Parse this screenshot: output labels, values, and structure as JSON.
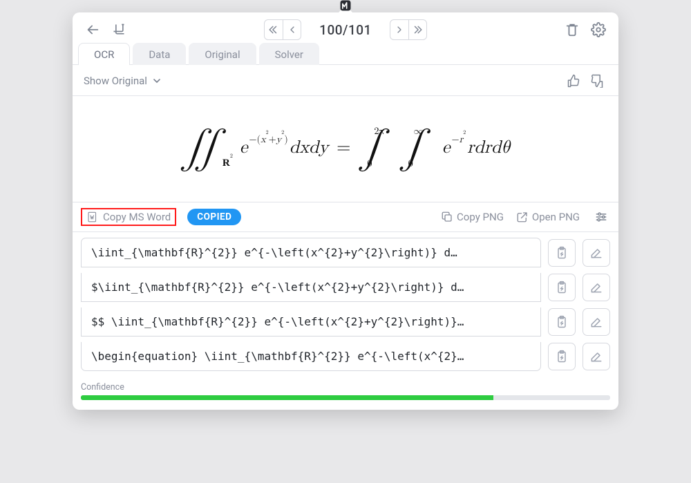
{
  "pager": {
    "current": 100,
    "total": 101,
    "display": "100/101"
  },
  "tabs": [
    {
      "label": "OCR",
      "active": true
    },
    {
      "label": "Data",
      "active": false
    },
    {
      "label": "Original",
      "active": false
    },
    {
      "label": "Solver",
      "active": false
    }
  ],
  "show_original_label": "Show Original",
  "equation": {
    "latex_source": "\\iint_{\\mathbf{R}^{2}} e^{-(x^{2}+y^{2})}\\,dx\\,dy = \\int_{0}^{2\\pi}\\int_{0}^{\\infty} e^{-r^{2}} r\\,dr\\,d\\theta",
    "font_family": "Latin Modern / Computer Modern serif",
    "font_size_pt": 22,
    "text_color": "#000000",
    "background_color": "#ffffff"
  },
  "actions": {
    "copy_word_label": "Copy MS Word",
    "copy_word_highlight_color": "#ff1a1a",
    "copied_pill": "COPIED",
    "pill_color": "#2196f3",
    "copy_png_label": "Copy PNG",
    "open_png_label": "Open PNG"
  },
  "latex_rows": [
    "\\iint_{\\mathbf{R}^{2}} e^{-\\left(x^{2}+y^{2}\\right)} d…",
    "$\\iint_{\\mathbf{R}^{2}} e^{-\\left(x^{2}+y^{2}\\right)} d…",
    "$$ \\iint_{\\mathbf{R}^{2}} e^{-\\left(x^{2}+y^{2}\\right)}…",
    "\\begin{equation} \\iint_{\\mathbf{R}^{2}} e^{-\\left(x^{2}…"
  ],
  "confidence": {
    "label": "Confidence",
    "percent": 78,
    "fill_color": "#2ecc40",
    "track_color": "#e4e6ea"
  },
  "colors": {
    "panel_bg": "#ffffff",
    "page_bg": "#e8e8ea",
    "border": "#d6d8de",
    "text_muted": "#8a8f9c",
    "text": "#1f2329"
  }
}
